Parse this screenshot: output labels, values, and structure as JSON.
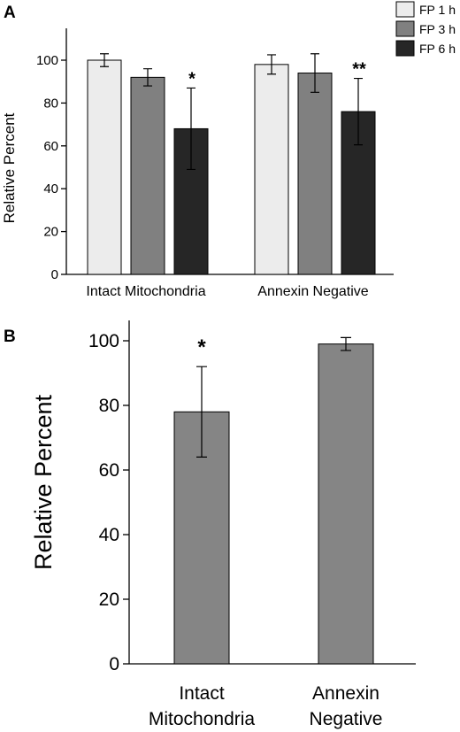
{
  "chart_data": [
    {
      "panel_label": "A",
      "type": "bar",
      "categories": [
        "Intact Mitochondria",
        "Annexin Negative"
      ],
      "series": [
        {
          "name": "FP 1 h",
          "color": "#ececec",
          "values": [
            100,
            98
          ],
          "errors": [
            3,
            4.5
          ]
        },
        {
          "name": "FP 3 h",
          "color": "#808080",
          "values": [
            92,
            94
          ],
          "errors": [
            4,
            9
          ]
        },
        {
          "name": "FP 6 h",
          "color": "#262626",
          "values": [
            68,
            76
          ],
          "errors": [
            19,
            15.5
          ]
        }
      ],
      "significance": [
        {
          "category": 0,
          "series": 2,
          "mark": "*"
        },
        {
          "category": 1,
          "series": 2,
          "mark": "**"
        }
      ],
      "ylabel": "Relative Percent",
      "yticks": [
        0,
        20,
        40,
        60,
        80,
        100
      ],
      "ylim": [
        0,
        115
      ],
      "legend": "top-right"
    },
    {
      "panel_label": "B",
      "type": "bar",
      "categories": [
        [
          "Intact",
          "Mitochondria"
        ],
        [
          "Annexin",
          "Negative"
        ]
      ],
      "series": [
        {
          "color": "#858585",
          "values": [
            78,
            99
          ],
          "errors": [
            14,
            2
          ]
        }
      ],
      "significance": [
        {
          "category": 0,
          "series": 0,
          "mark": "*"
        }
      ],
      "ylabel": "Relative Percent",
      "yticks": [
        0,
        20,
        40,
        60,
        80,
        100
      ],
      "ylim": [
        0,
        112
      ]
    }
  ]
}
